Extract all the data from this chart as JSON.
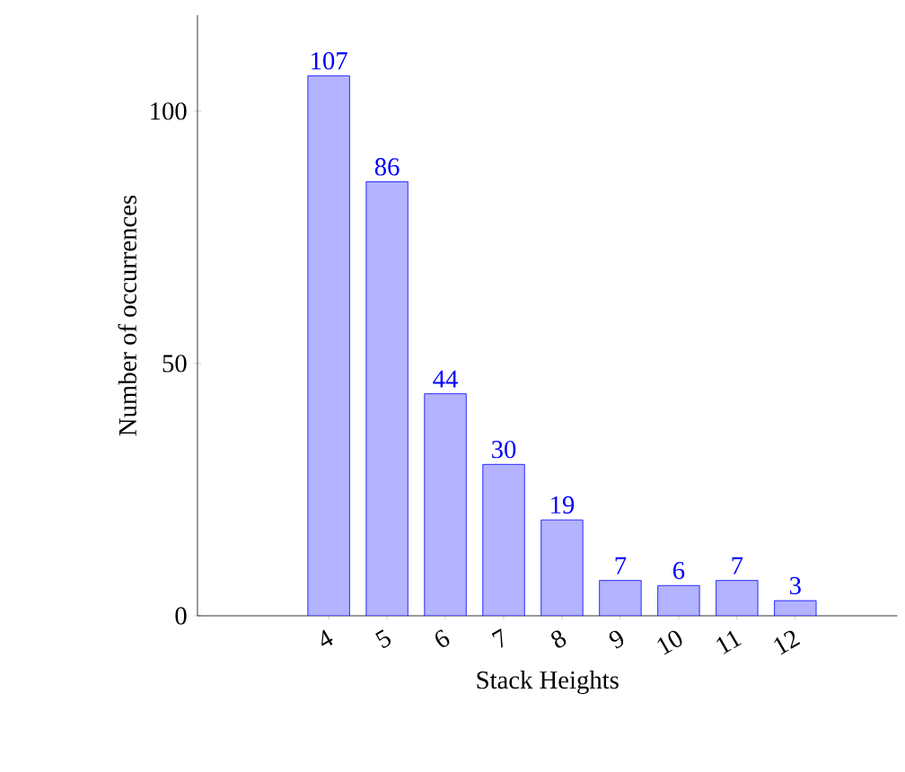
{
  "chart_data": {
    "type": "bar",
    "xlabel": "Stack Heights",
    "ylabel": "Number of occurrences",
    "categories": [
      "4",
      "5",
      "6",
      "7",
      "8",
      "9",
      "10",
      "11",
      "12"
    ],
    "values": [
      107,
      86,
      44,
      30,
      19,
      7,
      6,
      7,
      3
    ],
    "color": "#b3b3ff",
    "ylim": [
      0,
      119
    ],
    "yticks": [
      0,
      50,
      100
    ],
    "data_labels": true
  }
}
